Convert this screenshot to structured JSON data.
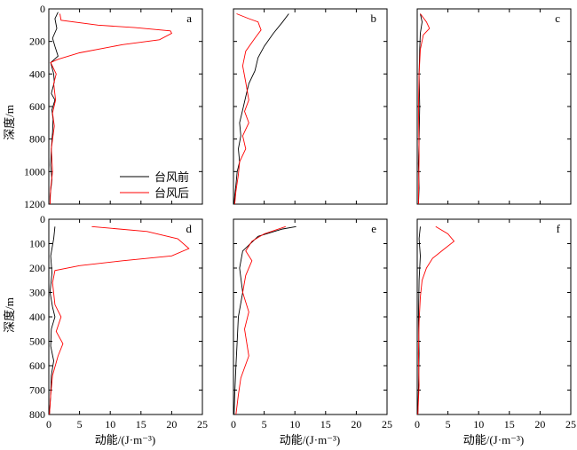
{
  "chart_data": {
    "type": "line",
    "ylabel": "深度/m",
    "xlabel": "动能/(J·m⁻³)",
    "legend": {
      "placement": "lower-right of panel a",
      "entries": [
        {
          "label": "台风前",
          "color": "#000000"
        },
        {
          "label": "台风后",
          "color": "#ff0000"
        }
      ]
    },
    "colors": {
      "before": "#000000",
      "after": "#ff0000"
    },
    "panels": [
      {
        "id": "a",
        "label": "a",
        "row": 0,
        "col": 0,
        "xlim": [
          0,
          25
        ],
        "ylim": [
          0,
          1200
        ],
        "yticks": [
          "0",
          "200",
          "400",
          "600",
          "800",
          "1000",
          "1200"
        ],
        "xticks": [],
        "series": [
          {
            "name": "台风前",
            "color": "#000000",
            "x": [
              1.5,
              1.0,
              1.3,
              0.6,
              1.0,
              1.5,
              0.3,
              0.8,
              0.9,
              0.4,
              1.0,
              0.5,
              0.7,
              0.6,
              0.4,
              0.3,
              0.5,
              0.2,
              0.2
            ],
            "y": [
              20,
              60,
              120,
              180,
              230,
              290,
              330,
              400,
              450,
              520,
              560,
              620,
              680,
              760,
              860,
              960,
              1050,
              1150,
              1200
            ]
          },
          {
            "name": "台风后",
            "color": "#ff0000",
            "x": [
              1.8,
              2.0,
              8.0,
              14.0,
              19.8,
              20.0,
              18.0,
              12.0,
              5.0,
              1.5,
              0.3,
              1.2,
              0.8,
              1.1,
              0.6,
              0.9,
              0.4,
              0.6,
              0.3,
              0.2
            ],
            "y": [
              30,
              70,
              100,
              115,
              135,
              150,
              190,
              220,
              270,
              310,
              330,
              400,
              460,
              560,
              640,
              720,
              860,
              1000,
              1100,
              1200
            ]
          }
        ]
      },
      {
        "id": "b",
        "label": "b",
        "row": 0,
        "col": 1,
        "xlim": [
          0,
          25
        ],
        "ylim": [
          0,
          1200
        ],
        "yticks": [],
        "xticks": [],
        "series": [
          {
            "name": "台风前",
            "color": "#000000",
            "x": [
              9.0,
              8.0,
              6.5,
              5.0,
              4.0,
              3.5,
              2.5,
              2.0,
              1.5,
              1.0,
              1.2,
              0.8,
              1.0,
              0.6,
              0.4,
              0.2,
              0.1
            ],
            "y": [
              30,
              80,
              150,
              230,
              300,
              380,
              460,
              540,
              620,
              700,
              780,
              860,
              940,
              1000,
              1080,
              1150,
              1200
            ]
          },
          {
            "name": "台风后",
            "color": "#ff0000",
            "x": [
              0.5,
              2.5,
              4.0,
              4.5,
              3.5,
              2.0,
              1.5,
              2.0,
              2.5,
              1.8,
              2.5,
              1.5,
              2.0,
              1.0,
              0.8,
              0.4,
              0.2
            ],
            "y": [
              30,
              60,
              80,
              130,
              180,
              260,
              350,
              450,
              560,
              630,
              700,
              780,
              860,
              940,
              1020,
              1120,
              1200
            ]
          }
        ]
      },
      {
        "id": "c",
        "label": "c",
        "row": 0,
        "col": 2,
        "xlim": [
          0,
          25
        ],
        "ylim": [
          0,
          1200
        ],
        "yticks": [],
        "xticks": [],
        "series": [
          {
            "name": "台风前",
            "color": "#000000",
            "x": [
              0.5,
              0.8,
              0.5,
              0.4,
              0.3,
              0.4,
              0.3,
              0.2,
              0.3,
              0.2
            ],
            "y": [
              30,
              80,
              150,
              250,
              400,
              600,
              800,
              950,
              1100,
              1200
            ]
          },
          {
            "name": "台风后",
            "color": "#ff0000",
            "x": [
              0.5,
              1.5,
              2.0,
              1.0,
              0.5,
              0.3,
              0.2,
              0.3,
              0.2
            ],
            "y": [
              30,
              80,
              120,
              160,
              250,
              400,
              600,
              900,
              1200
            ]
          }
        ]
      },
      {
        "id": "d",
        "label": "d",
        "row": 1,
        "col": 0,
        "xlim": [
          0,
          25
        ],
        "ylim": [
          0,
          800
        ],
        "yticks": [
          "0",
          "100",
          "200",
          "300",
          "400",
          "500",
          "600",
          "700",
          "800"
        ],
        "xticks": [
          "0",
          "5",
          "10",
          "15",
          "20",
          "25"
        ],
        "series": [
          {
            "name": "台风前",
            "color": "#000000",
            "x": [
              1.0,
              0.8,
              0.3,
              0.5,
              0.2,
              0.6,
              1.0,
              0.4,
              0.3,
              0.8,
              0.4,
              0.3,
              0.1
            ],
            "y": [
              30,
              80,
              150,
              220,
              300,
              360,
              400,
              450,
              520,
              580,
              640,
              720,
              800
            ]
          },
          {
            "name": "台风后",
            "color": "#ff0000",
            "x": [
              7.0,
              16.0,
              21.0,
              22.8,
              20.0,
              12.0,
              5.0,
              1.0,
              0.6,
              1.0,
              2.0,
              1.2,
              2.3,
              1.5,
              0.6,
              0.3,
              0.1
            ],
            "y": [
              30,
              50,
              80,
              120,
              150,
              170,
              190,
              210,
              260,
              350,
              400,
              460,
              510,
              560,
              640,
              720,
              800
            ]
          }
        ]
      },
      {
        "id": "e",
        "label": "e",
        "row": 1,
        "col": 1,
        "xlim": [
          0,
          25
        ],
        "ylim": [
          0,
          800
        ],
        "yticks": [],
        "xticks": [
          "0",
          "5",
          "10",
          "15",
          "20",
          "25"
        ],
        "series": [
          {
            "name": "台风前",
            "color": "#000000",
            "x": [
              10.2,
              8.0,
              4.0,
              1.5,
              1.0,
              1.5,
              0.8,
              0.6,
              0.4,
              0.2,
              0.1
            ],
            "y": [
              30,
              40,
              70,
              130,
              200,
              300,
              400,
              500,
              600,
              720,
              800
            ]
          },
          {
            "name": "台风后",
            "color": "#ff0000",
            "x": [
              8.5,
              5.0,
              3.0,
              2.0,
              3.0,
              2.0,
              1.5,
              2.5,
              1.8,
              2.5,
              1.2,
              0.8,
              0.4
            ],
            "y": [
              30,
              60,
              90,
              130,
              170,
              230,
              300,
              380,
              450,
              560,
              650,
              720,
              800
            ]
          }
        ]
      },
      {
        "id": "f",
        "label": "f",
        "row": 1,
        "col": 2,
        "xlim": [
          0,
          25
        ],
        "ylim": [
          0,
          800
        ],
        "yticks": [],
        "xticks": [
          "0",
          "5",
          "10",
          "15",
          "20",
          "25"
        ],
        "series": [
          {
            "name": "台风前",
            "color": "#000000",
            "x": [
              0.5,
              0.3,
              0.5,
              0.3,
              0.2,
              0.3,
              0.2,
              0.1
            ],
            "y": [
              30,
              80,
              150,
              250,
              400,
              550,
              700,
              800
            ]
          },
          {
            "name": "台风后",
            "color": "#ff0000",
            "x": [
              3.0,
              5.0,
              6.0,
              4.5,
              2.5,
              1.5,
              0.8,
              0.5,
              0.3,
              0.2,
              0.3,
              0.1
            ],
            "y": [
              30,
              60,
              90,
              120,
              160,
              200,
              250,
              320,
              420,
              550,
              680,
              800
            ]
          }
        ]
      }
    ]
  }
}
